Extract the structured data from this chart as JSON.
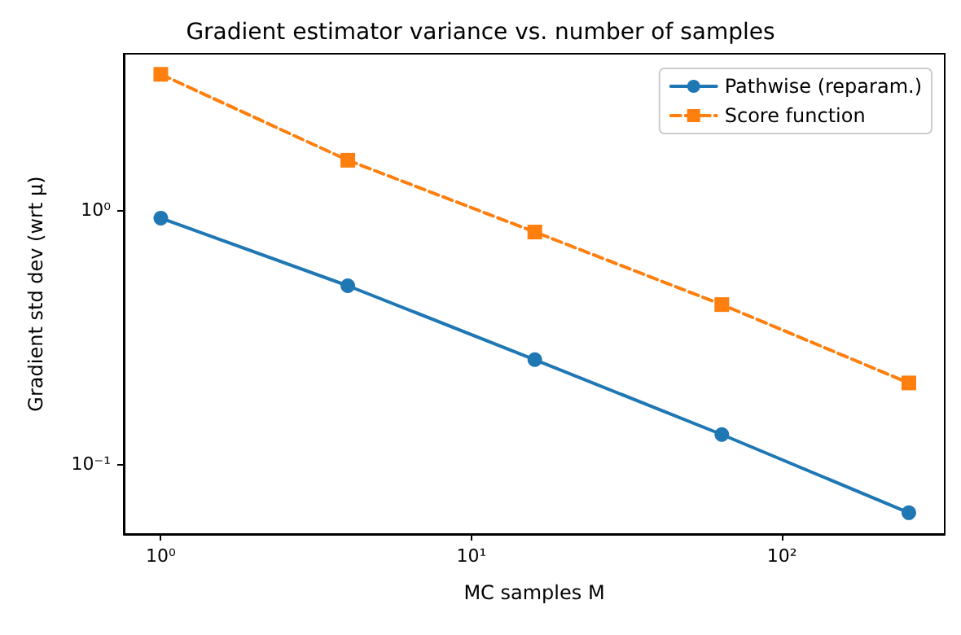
{
  "chart_data": {
    "type": "line",
    "title": "Gradient estimator variance vs. number of samples",
    "xlabel": "MC samples M",
    "ylabel": "Gradient std dev (wrt μ)",
    "x": [
      1,
      4,
      16,
      64,
      256
    ],
    "series": [
      {
        "name": "Pathwise (reparam.)",
        "color": "#1f77b4",
        "values": [
          0.93,
          0.504,
          0.258,
          0.131,
          0.0645
        ],
        "marker": "circle",
        "line_style": "solid"
      },
      {
        "name": "Score function",
        "color": "#ff7f0e",
        "values": [
          3.42,
          1.57,
          0.82,
          0.425,
          0.209
        ],
        "marker": "square",
        "line_style": "dashed"
      }
    ],
    "log": "xy",
    "xlim": [
      0.76,
      334
    ],
    "ylim": [
      0.0532,
      4.12
    ],
    "xticks": [
      {
        "value": 1,
        "label": "10⁰"
      },
      {
        "value": 10,
        "label": "10¹"
      },
      {
        "value": 100,
        "label": "10²"
      }
    ],
    "yticks": [
      {
        "value": 0.1,
        "label": "10⁻¹"
      },
      {
        "value": 1,
        "label": "10⁰"
      }
    ],
    "grid": false,
    "legend": "top right"
  }
}
